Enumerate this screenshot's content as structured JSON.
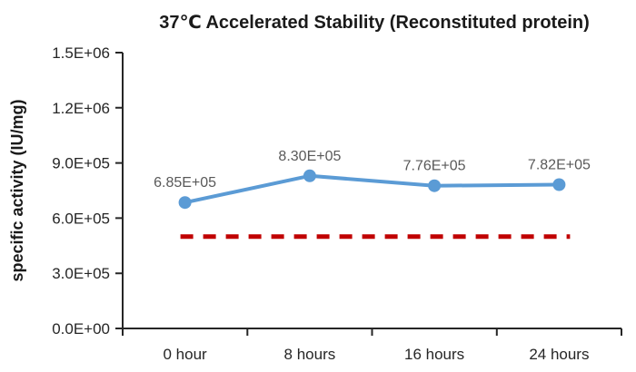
{
  "chart_data": {
    "type": "line",
    "title": "37℃ Accelerated Stability (Reconstituted protein)",
    "ylabel": "specific activity (IU/mg)",
    "xlabel": "",
    "categories": [
      "0 hour",
      "8 hours",
      "16 hours",
      "24 hours"
    ],
    "series": [
      {
        "name": "specific activity",
        "values": [
          685000,
          830000,
          776000,
          782000
        ],
        "point_labels": [
          "6.85E+05",
          "8.30E+05",
          "7.76E+05",
          "7.82E+05"
        ],
        "color": "#5B9BD5"
      }
    ],
    "reference_line": {
      "value": 500000,
      "style": "dashed",
      "color": "#C00000"
    },
    "ylim": [
      0,
      1500000
    ],
    "ytick_values": [
      0,
      300000,
      600000,
      900000,
      1200000,
      1500000
    ],
    "ytick_labels": [
      "0.0E+00",
      "3.0E+05",
      "6.0E+05",
      "9.0E+05",
      "1.2E+06",
      "1.5E+06"
    ],
    "grid": false,
    "legend": false,
    "colors": {
      "axis": "#262626",
      "tick_text": "#262626",
      "data_label": "#595959",
      "background": "#FFFFFF"
    }
  }
}
